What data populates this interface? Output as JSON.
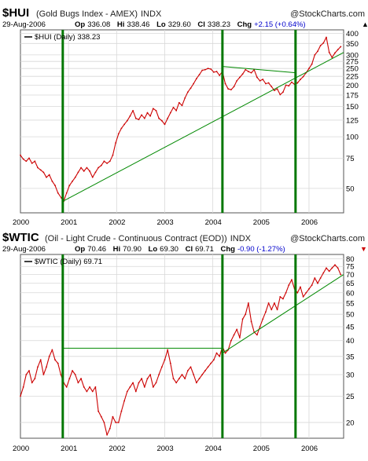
{
  "chart_data": [
    {
      "type": "line",
      "symbol": "$HUI",
      "name": "(Gold Bugs Index - AMEX)",
      "exchange": "INDX",
      "brand": "@StockCharts.com",
      "date": "29-Aug-2006",
      "op_label": "Op",
      "op": "336.08",
      "hi_label": "Hi",
      "hi": "338.46",
      "lo_label": "Lo",
      "lo": "329.60",
      "cl_label": "Cl",
      "cl": "338.23",
      "chg_label": "Chg",
      "chg": "+2.15 (+0.64%)",
      "chg_arrow": "▲",
      "legend": "$HUI (Daily) 338.23",
      "scale": "log",
      "ylim": [
        36,
        420
      ],
      "yticks": [
        50,
        75,
        100,
        125,
        150,
        175,
        200,
        225,
        250,
        275,
        300,
        350,
        400
      ],
      "xlim": [
        2000.0,
        2006.72
      ],
      "xticks": [
        "2000",
        "2001",
        "2002",
        "2003",
        "2004",
        "2005",
        "2006"
      ],
      "series_color": "#cc0000",
      "trend_color": "#008800",
      "vline_color": "#007700",
      "vlines": [
        2000.88,
        2004.2,
        2005.72
      ],
      "x": [
        2000.0,
        2000.06,
        2000.12,
        2000.18,
        2000.24,
        2000.3,
        2000.36,
        2000.42,
        2000.48,
        2000.54,
        2000.6,
        2000.66,
        2000.72,
        2000.78,
        2000.85,
        2000.9,
        2000.96,
        2001.02,
        2001.08,
        2001.14,
        2001.2,
        2001.26,
        2001.32,
        2001.38,
        2001.44,
        2001.5,
        2001.56,
        2001.62,
        2001.68,
        2001.74,
        2001.8,
        2001.86,
        2001.92,
        2001.98,
        2002.04,
        2002.1,
        2002.16,
        2002.22,
        2002.28,
        2002.34,
        2002.4,
        2002.46,
        2002.52,
        2002.58,
        2002.64,
        2002.7,
        2002.76,
        2002.82,
        2002.88,
        2002.94,
        2003.0,
        2003.06,
        2003.12,
        2003.18,
        2003.24,
        2003.3,
        2003.36,
        2003.42,
        2003.48,
        2003.54,
        2003.6,
        2003.66,
        2003.72,
        2003.78,
        2003.84,
        2003.9,
        2003.96,
        2004.02,
        2004.08,
        2004.14,
        2004.2,
        2004.26,
        2004.32,
        2004.38,
        2004.44,
        2004.5,
        2004.56,
        2004.62,
        2004.68,
        2004.74,
        2004.8,
        2004.86,
        2004.92,
        2004.98,
        2005.04,
        2005.1,
        2005.16,
        2005.22,
        2005.28,
        2005.34,
        2005.4,
        2005.46,
        2005.52,
        2005.58,
        2005.64,
        2005.7,
        2005.76,
        2005.82,
        2005.88,
        2005.94,
        2006.0,
        2006.06,
        2006.12,
        2006.18,
        2006.24,
        2006.3,
        2006.36,
        2006.42,
        2006.48,
        2006.54,
        2006.6,
        2006.66
      ],
      "values": [
        78,
        74,
        72,
        75,
        70,
        72,
        66,
        64,
        62,
        58,
        60,
        55,
        52,
        47,
        44,
        42,
        47,
        52,
        55,
        58,
        62,
        66,
        63,
        66,
        63,
        58,
        62,
        66,
        68,
        72,
        70,
        72,
        78,
        92,
        104,
        112,
        118,
        124,
        132,
        142,
        128,
        126,
        134,
        128,
        138,
        132,
        146,
        142,
        128,
        124,
        118,
        128,
        138,
        148,
        142,
        158,
        152,
        168,
        182,
        192,
        204,
        218,
        230,
        244,
        246,
        250,
        248,
        238,
        240,
        228,
        240,
        204,
        190,
        188,
        196,
        212,
        222,
        232,
        246,
        240,
        236,
        246,
        222,
        212,
        216,
        204,
        206,
        196,
        186,
        190,
        176,
        182,
        200,
        198,
        208,
        202,
        206,
        216,
        224,
        236,
        250,
        265,
        300,
        315,
        340,
        352,
        380,
        310,
        290,
        308,
        322,
        335
      ],
      "trends": [
        {
          "x": [
            2000.88,
            2006.72
          ],
          "y": [
            42,
            310
          ]
        },
        {
          "x": [
            2004.2,
            2005.72
          ],
          "y": [
            257,
            236
          ]
        }
      ]
    },
    {
      "type": "line",
      "symbol": "$WTIC",
      "name": "(Oil - Light Crude - Continuous Contract (EOD))",
      "exchange": "INDX",
      "brand": "@StockCharts.com",
      "date": "29-Aug-2006",
      "op_label": "Op",
      "op": "70.46",
      "hi_label": "Hi",
      "hi": "70.90",
      "lo_label": "Lo",
      "lo": "69.30",
      "cl_label": "Cl",
      "cl": "69.71",
      "chg_label": "Chg",
      "chg": "-0.90 (-1.27%)",
      "chg_arrow": "▼",
      "legend": "$WTIC (Daily) 69.71",
      "scale": "log",
      "ylim": [
        17.5,
        83
      ],
      "yticks": [
        20,
        25,
        30,
        35,
        40,
        45,
        50,
        55,
        60,
        65,
        70,
        75,
        80
      ],
      "xlim": [
        2000.0,
        2006.72
      ],
      "xticks": [
        "2000",
        "2001",
        "2002",
        "2003",
        "2004",
        "2005",
        "2006"
      ],
      "series_color": "#cc0000",
      "trend_color": "#008800",
      "vline_color": "#007700",
      "vlines": [
        2000.88,
        2004.2,
        2005.72
      ],
      "x": [
        2000.0,
        2000.06,
        2000.12,
        2000.18,
        2000.24,
        2000.3,
        2000.36,
        2000.42,
        2000.48,
        2000.54,
        2000.6,
        2000.66,
        2000.72,
        2000.78,
        2000.84,
        2000.9,
        2000.96,
        2001.02,
        2001.08,
        2001.14,
        2001.2,
        2001.26,
        2001.32,
        2001.38,
        2001.44,
        2001.5,
        2001.56,
        2001.62,
        2001.68,
        2001.74,
        2001.8,
        2001.86,
        2001.92,
        2001.98,
        2002.04,
        2002.1,
        2002.16,
        2002.22,
        2002.28,
        2002.34,
        2002.4,
        2002.46,
        2002.52,
        2002.58,
        2002.64,
        2002.7,
        2002.76,
        2002.82,
        2002.88,
        2002.94,
        2003.0,
        2003.06,
        2003.12,
        2003.18,
        2003.24,
        2003.3,
        2003.36,
        2003.42,
        2003.48,
        2003.54,
        2003.6,
        2003.66,
        2003.72,
        2003.78,
        2003.84,
        2003.9,
        2003.96,
        2004.02,
        2004.08,
        2004.14,
        2004.2,
        2004.26,
        2004.32,
        2004.38,
        2004.44,
        2004.5,
        2004.56,
        2004.62,
        2004.68,
        2004.74,
        2004.8,
        2004.86,
        2004.92,
        2004.98,
        2005.04,
        2005.1,
        2005.16,
        2005.22,
        2005.28,
        2005.34,
        2005.4,
        2005.46,
        2005.52,
        2005.58,
        2005.64,
        2005.7,
        2005.76,
        2005.82,
        2005.88,
        2005.94,
        2006.0,
        2006.06,
        2006.12,
        2006.18,
        2006.24,
        2006.3,
        2006.36,
        2006.42,
        2006.48,
        2006.54,
        2006.6,
        2006.66
      ],
      "values": [
        25,
        27,
        30,
        31,
        28,
        29,
        32,
        34,
        30,
        32,
        35,
        37,
        34,
        33,
        30,
        28,
        27,
        29,
        31,
        30,
        28,
        29,
        27,
        26,
        27,
        26,
        27,
        22,
        21,
        20,
        18,
        19,
        21,
        20,
        20,
        22,
        24,
        26,
        27,
        28,
        26,
        28,
        29,
        27,
        29,
        30,
        27,
        28,
        30,
        32,
        34,
        37,
        33,
        29,
        28,
        29,
        30,
        29,
        31,
        32,
        30,
        28,
        29,
        30,
        31,
        32,
        33,
        34,
        36,
        35,
        38,
        36,
        37,
        40,
        42,
        44,
        41,
        48,
        50,
        55,
        47,
        43,
        42,
        45,
        48,
        51,
        55,
        52,
        55,
        52,
        58,
        57,
        60,
        64,
        67,
        62,
        60,
        63,
        58,
        60,
        62,
        64,
        68,
        65,
        68,
        71,
        74,
        72,
        74,
        76,
        74,
        70
      ],
      "trends": [
        {
          "x": [
            2000.88,
            2004.2
          ],
          "y": [
            37.5,
            37.5
          ]
        },
        {
          "x": [
            2004.2,
            2006.72
          ],
          "y": [
            36,
            70
          ]
        }
      ]
    }
  ]
}
